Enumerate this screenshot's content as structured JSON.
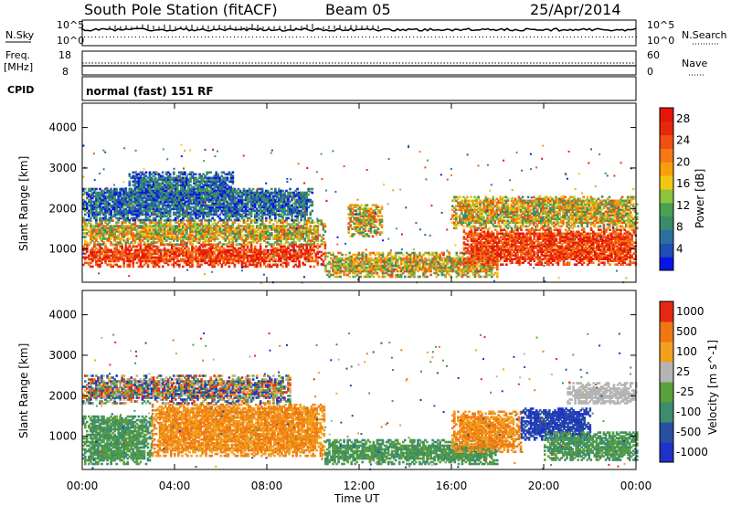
{
  "header": {
    "station": "South Pole Station (fitACF)",
    "beam": "Beam 05",
    "date": "25/Apr/2014"
  },
  "params": {
    "nsky_label": "N.Sky",
    "nsearch_label": "N.Search",
    "freq_label_1": "Freq.",
    "freq_label_2": "[MHz]",
    "nave_label": "Nave",
    "cpid_label": "CPID",
    "cpid_text": "normal (fast) 151 RF",
    "left_scale_top": "10^5",
    "left_scale_bottom": "10^0",
    "right_scale_top": "10^5",
    "right_scale_bottom": "10^0",
    "freq_top": "18",
    "freq_bottom": "8",
    "nave_top": "60",
    "nave_bottom": "0"
  },
  "chart_data": [
    {
      "type": "heatmap",
      "title": "Power",
      "ylabel": "Slant Range [km]",
      "xlabel": "Time UT",
      "x_ticks": [
        "00:00",
        "04:00",
        "08:00",
        "12:00",
        "16:00",
        "20:00",
        "00:00"
      ],
      "y_ticks": [
        1000,
        2000,
        3000,
        4000
      ],
      "ylim": [
        180,
        4600
      ],
      "colorbar": {
        "label": "Power [dB]",
        "ticks": [
          "4",
          "8",
          "12",
          "16",
          "20",
          "24",
          "28"
        ],
        "colors": [
          "#0a14e6",
          "#1f4fb4",
          "#2c6fa0",
          "#3a8a6c",
          "#4aa050",
          "#8cc43c",
          "#f0c814",
          "#f5a00a",
          "#f57814",
          "#f05014",
          "#e6280a",
          "#e6140a"
        ]
      },
      "bands": [
        {
          "t0": 0.0,
          "t1": 10.5,
          "r0": 550,
          "r1": 1100,
          "level": "high"
        },
        {
          "t0": 0.0,
          "t1": 10.5,
          "r0": 1100,
          "r1": 1700,
          "level": "mid"
        },
        {
          "t0": 0.0,
          "t1": 10.0,
          "r0": 1700,
          "r1": 2500,
          "level": "low"
        },
        {
          "t0": 2.0,
          "t1": 6.5,
          "r0": 2200,
          "r1": 2900,
          "level": "low"
        },
        {
          "t0": 10.5,
          "t1": 18.0,
          "r0": 300,
          "r1": 900,
          "level": "mid"
        },
        {
          "t0": 11.5,
          "t1": 13.0,
          "r0": 1300,
          "r1": 2100,
          "level": "mid"
        },
        {
          "t0": 16.5,
          "t1": 24.0,
          "r0": 600,
          "r1": 1500,
          "level": "high"
        },
        {
          "t0": 16.0,
          "t1": 24.0,
          "r0": 1500,
          "r1": 2300,
          "level": "mid"
        }
      ]
    },
    {
      "type": "heatmap",
      "title": "Velocity",
      "ylabel": "Slant Range [km]",
      "xlabel": "Time UT",
      "x_ticks": [
        "00:00",
        "04:00",
        "08:00",
        "12:00",
        "16:00",
        "20:00",
        "00:00"
      ],
      "y_ticks": [
        1000,
        2000,
        3000,
        4000
      ],
      "ylim": [
        180,
        4600
      ],
      "colorbar": {
        "label": "Velocity [m s^-1]",
        "ticks": [
          "1000",
          "500",
          "100",
          "25",
          "-25",
          "-100",
          "-500",
          "-1000"
        ],
        "colors": [
          "#1e32c8",
          "#2850a0",
          "#3c8c6e",
          "#5aa03c",
          "#b4b4b4",
          "#f0a01e",
          "#f07814",
          "#e62814"
        ]
      },
      "bands": [
        {
          "t0": 0.0,
          "t1": 3.0,
          "r0": 300,
          "r1": 1500,
          "level": "green"
        },
        {
          "t0": 3.0,
          "t1": 10.5,
          "r0": 500,
          "r1": 1800,
          "level": "orange"
        },
        {
          "t0": 0.0,
          "t1": 9.0,
          "r0": 1800,
          "r1": 2500,
          "level": "mixed"
        },
        {
          "t0": 10.5,
          "t1": 18.0,
          "r0": 300,
          "r1": 900,
          "level": "green"
        },
        {
          "t0": 16.0,
          "t1": 19.0,
          "r0": 600,
          "r1": 1600,
          "level": "orange"
        },
        {
          "t0": 19.0,
          "t1": 22.0,
          "r0": 900,
          "r1": 1700,
          "level": "blue"
        },
        {
          "t0": 20.0,
          "t1": 24.0,
          "r0": 400,
          "r1": 1100,
          "level": "green"
        },
        {
          "t0": 21.0,
          "t1": 24.0,
          "r0": 1800,
          "r1": 2300,
          "level": "grey"
        }
      ]
    }
  ]
}
